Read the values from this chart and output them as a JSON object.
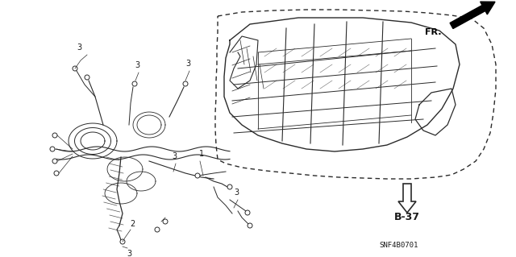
{
  "bg_color": "#ffffff",
  "line_color": "#2a2a2a",
  "text_color": "#1a1a1a",
  "fr_label": "FR.",
  "b37_label": "B-37",
  "part_number": "SNF4B0701",
  "figsize": [
    6.4,
    3.19
  ],
  "dpi": 100
}
